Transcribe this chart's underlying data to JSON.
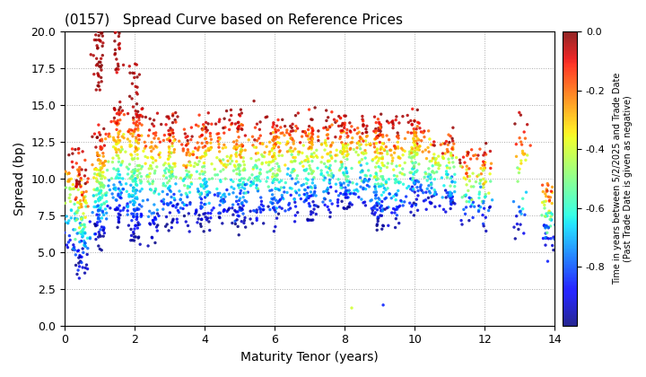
{
  "title": "(0157)   Spread Curve based on Reference Prices",
  "xlabel": "Maturity Tenor (years)",
  "ylabel": "Spread (bp)",
  "colorbar_label": "Time in years between 5/2/2025 and Trade Date\n(Past Trade Date is given as negative)",
  "xlim": [
    0,
    14
  ],
  "ylim": [
    0.0,
    20.0
  ],
  "color_min": -1.0,
  "color_max": 0.0,
  "yticks": [
    0.0,
    2.5,
    5.0,
    7.5,
    10.0,
    12.5,
    15.0,
    17.5,
    20.0
  ],
  "xticks": [
    0,
    2,
    4,
    6,
    8,
    10,
    12,
    14
  ],
  "background_color": "#ffffff",
  "grid_color": "#aaaaaa",
  "dot_size": 6
}
